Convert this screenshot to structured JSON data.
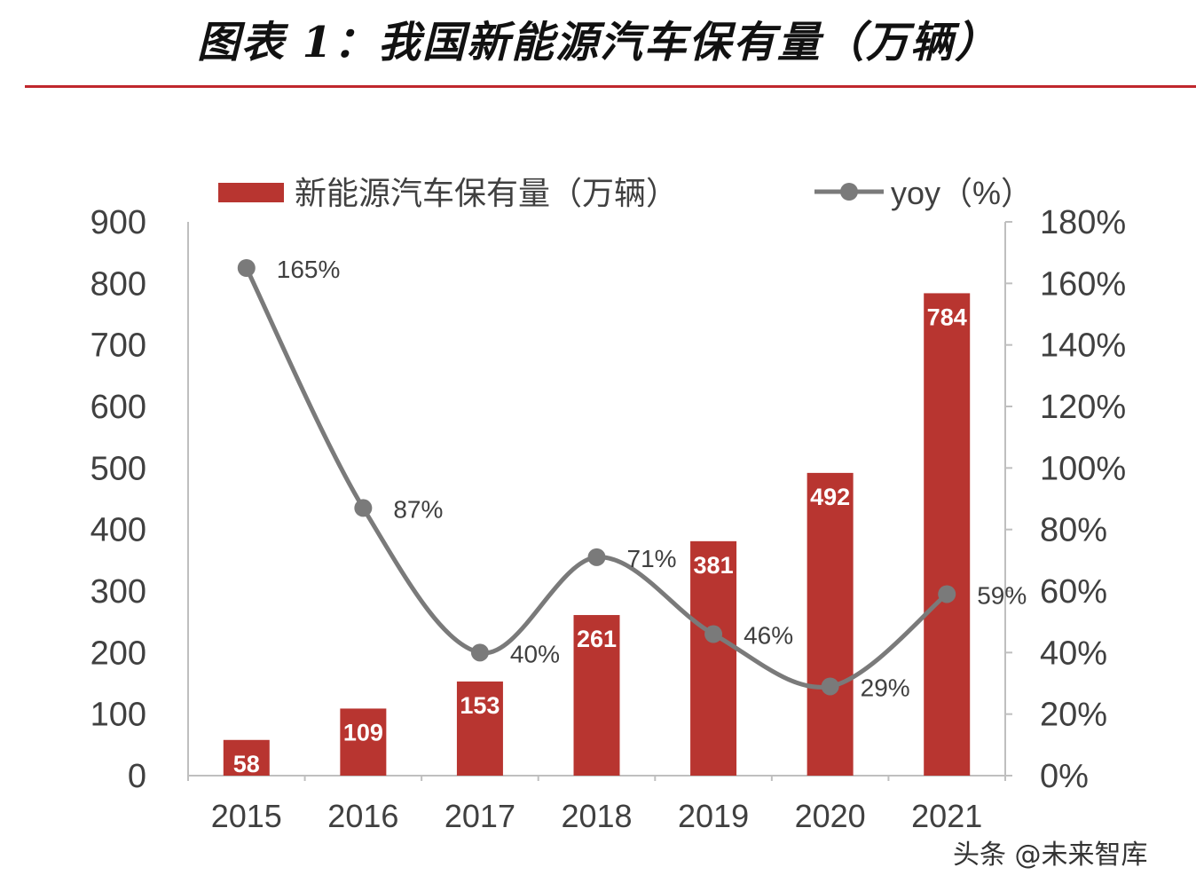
{
  "figure": {
    "title": "图表 1：我国新能源汽车保有量（万辆）",
    "watermark": "头条 @未来智库"
  },
  "colors": {
    "bar": "#b83530",
    "line": "#7a7a7a",
    "title_rule": "#c0272d",
    "axis_text": "#404040"
  },
  "chart_data": {
    "type": "bar",
    "categories": [
      "2015",
      "2016",
      "2017",
      "2018",
      "2019",
      "2020",
      "2021"
    ],
    "series": [
      {
        "name": "新能源汽车保有量（万辆）",
        "type": "bar",
        "axis": "left",
        "values": [
          58,
          109,
          153,
          261,
          381,
          492,
          784
        ],
        "labels": [
          "58",
          "109",
          "153",
          "261",
          "381",
          "492",
          "784"
        ]
      },
      {
        "name": "yoy（%）",
        "type": "line",
        "axis": "right",
        "values": [
          165,
          87,
          40,
          71,
          46,
          29,
          59
        ],
        "labels": [
          "165%",
          "87%",
          "40%",
          "71%",
          "46%",
          "29%",
          "59%"
        ]
      }
    ],
    "y_left": {
      "ylim": [
        0,
        900
      ],
      "ticks": [
        "0",
        "100",
        "200",
        "300",
        "400",
        "500",
        "600",
        "700",
        "800",
        "900"
      ]
    },
    "y_right": {
      "ylim": [
        0,
        180
      ],
      "ticks": [
        "0%",
        "20%",
        "40%",
        "60%",
        "80%",
        "100%",
        "120%",
        "140%",
        "160%",
        "180%"
      ]
    },
    "legend_position": "top",
    "grid": false
  }
}
